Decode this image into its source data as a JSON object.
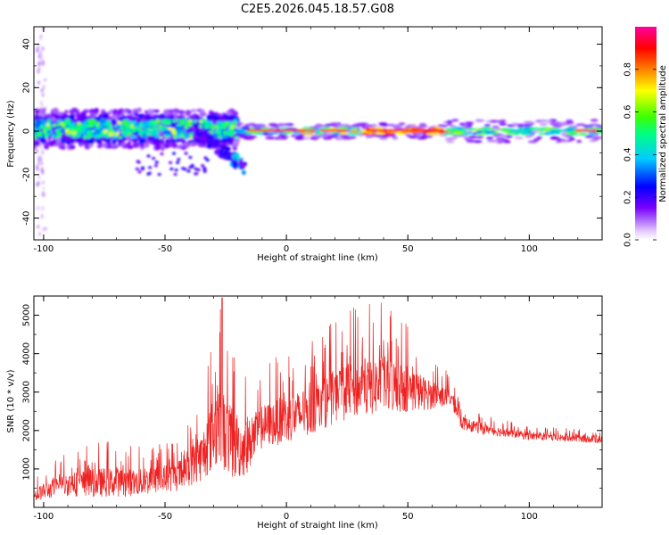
{
  "title": "C2E5.2026.045.18.57.G08",
  "chart_data": [
    {
      "type": "heatmap",
      "name": "spectrogram",
      "xlabel": "Height of straight line (km)",
      "ylabel": "Frequency (Hz)",
      "xlim": [
        -104,
        130
      ],
      "ylim": [
        -50,
        48
      ],
      "xticks": [
        -100,
        -50,
        0,
        50,
        100
      ],
      "yticks": [
        -40,
        -20,
        0,
        20,
        40
      ],
      "colorbar": {
        "label": "Normalized spectral amplitude",
        "range": [
          0,
          1
        ],
        "ticks": [
          "0.0",
          "0.2",
          "0.4",
          "0.6",
          "0.8"
        ],
        "colors": [
          "#ffffff",
          "#e6ccff",
          "#b070ff",
          "#7a00ff",
          "#0000ff",
          "#00ccff",
          "#00ff80",
          "#40ff00",
          "#ffff00",
          "#ff8000",
          "#ff0000",
          "#ff00a0"
        ]
      },
      "features": [
        {
          "description": "broad noisy band",
          "x_range": [
            -104,
            -20
          ],
          "freq_center": 0,
          "freq_halfwidth": 8
        },
        {
          "description": "downward sloping arm",
          "x_range": [
            -40,
            -17
          ],
          "freq_start": 3,
          "freq_end": -17
        },
        {
          "description": "narrow strong carrier",
          "x_range": [
            -20,
            130
          ],
          "freq_center": 0,
          "freq_halfwidth": 2
        }
      ]
    },
    {
      "type": "line",
      "name": "snr",
      "xlabel": "Height of straight line (km)",
      "ylabel": "SNR (10 * v/v)",
      "xlim": [
        -104,
        130
      ],
      "ylim": [
        0,
        5500
      ],
      "xticks": [
        -100,
        -50,
        0,
        50,
        100
      ],
      "yticks": [
        1000,
        2000,
        3000,
        4000,
        5000
      ],
      "color": "#ee2222",
      "series_envelope": [
        {
          "x": -104,
          "mean": 300,
          "amp": 250
        },
        {
          "x": -100,
          "mean": 420,
          "amp": 300
        },
        {
          "x": -90,
          "mean": 600,
          "amp": 450
        },
        {
          "x": -75,
          "mean": 650,
          "amp": 550
        },
        {
          "x": -60,
          "mean": 650,
          "amp": 500
        },
        {
          "x": -45,
          "mean": 800,
          "amp": 550
        },
        {
          "x": -35,
          "mean": 1300,
          "amp": 900
        },
        {
          "x": -28,
          "mean": 2200,
          "amp": 1600
        },
        {
          "x": -22,
          "mean": 1600,
          "amp": 1300
        },
        {
          "x": -17,
          "mean": 1500,
          "amp": 1000
        },
        {
          "x": -10,
          "mean": 2100,
          "amp": 800
        },
        {
          "x": 0,
          "mean": 2300,
          "amp": 900
        },
        {
          "x": 10,
          "mean": 2500,
          "amp": 900
        },
        {
          "x": 20,
          "mean": 2900,
          "amp": 1000
        },
        {
          "x": 30,
          "mean": 3100,
          "amp": 1100
        },
        {
          "x": 40,
          "mean": 3200,
          "amp": 1100
        },
        {
          "x": 50,
          "mean": 3100,
          "amp": 900
        },
        {
          "x": 60,
          "mean": 2900,
          "amp": 500
        },
        {
          "x": 68,
          "mean": 2850,
          "amp": 300
        },
        {
          "x": 72,
          "mean": 2200,
          "amp": 250
        },
        {
          "x": 80,
          "mean": 2050,
          "amp": 200
        },
        {
          "x": 100,
          "mean": 1850,
          "amp": 140
        },
        {
          "x": 130,
          "mean": 1750,
          "amp": 120
        }
      ],
      "peak": {
        "x": -26.5,
        "y": 5450
      }
    }
  ]
}
